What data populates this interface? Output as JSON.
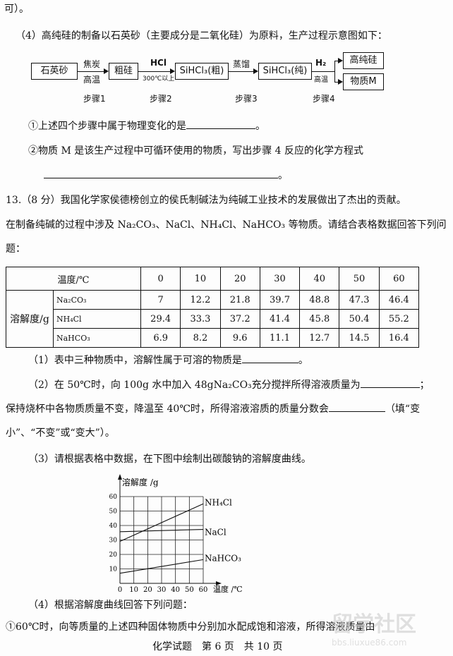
{
  "top_line": "可）。",
  "q4": {
    "intro": "（4）高纯硅的制备以石英砂（主要成分是二氧化硅）为原料，生产过程示意图如下：",
    "flow": {
      "boxes": [
        "石英砂",
        "粗硅",
        "SiHCl₃(粗)",
        "SiHCl₃(纯)",
        "高纯硅",
        "物质M"
      ],
      "step1_top": "焦炭",
      "step1_bottom": "高温",
      "step2_top": "HCl",
      "step2_bottom": "300℃以上",
      "step3_top": "蒸馏",
      "step4_top": "H₂",
      "step4_bottom": "高温",
      "steps": [
        "步骤1",
        "步骤2",
        "步骤3",
        "步骤4"
      ]
    },
    "sub1": "①上述四个步骤中属于物理变化的是",
    "sub1_end": "。",
    "sub2": "②物质 M 是该生产过程中可循环使用的物质，写出步骤 4 反应的化学方程式",
    "sub2_end": "。"
  },
  "q13": {
    "line1": "13.（8 分）我国化学家侯德榜创立的侯氏制碱法为纯碱工业技术的发展做出了杰出的贡献。",
    "line2": "在制备纯碱的过程中涉及 Na₂CO₃、NaCl、NH₄Cl、NaHCO₃ 等物质。请结合表格数据回答下列问",
    "line3": "题：",
    "table": {
      "header_label": "温度/℃",
      "temps": [
        "0",
        "10",
        "20",
        "30",
        "40",
        "50",
        "60"
      ],
      "row_label": "溶解度/g",
      "rows": [
        {
          "name": "Na₂CO₃",
          "values": [
            "7",
            "12.2",
            "21.8",
            "39.7",
            "48.8",
            "47.3",
            "46.4"
          ]
        },
        {
          "name": "NH₄Cl",
          "values": [
            "29.4",
            "33.3",
            "37.2",
            "41.4",
            "45.8",
            "50.4",
            "55.2"
          ]
        },
        {
          "name": "NaHCO₃",
          "values": [
            "6.9",
            "8.2",
            "9.6",
            "11.1",
            "12.7",
            "14.5",
            "16.4"
          ]
        }
      ]
    },
    "p1": "（1）表中三种物质中，溶解性属于可溶的物质是",
    "p1_end": "。",
    "p2a": "（2）在 50℃时，向 100g 水中加入 48gNa₂CO₃充分搅拌所得溶液质量为",
    "p2a_end": "；",
    "p2b": "保持烧杯中各物质质量不变，降温至 40℃时，所得溶液溶质的质量分数会",
    "p2b_end": "（填“变",
    "p2c": "小”、“不变”或“变大”）。",
    "p3": "（3）请根据表格中数据，在下图中绘制出碳酸钠的溶解度曲线。",
    "p4": "（4）根据溶解度曲线回答下列问题：",
    "p4_1": "①60℃时，向等质量的上述四种固体物质中分别加水配成饱和溶液，所得溶液质量由"
  },
  "chart_data": {
    "type": "line",
    "ylabel": "溶解度 /g",
    "xlabel": "温度 /℃",
    "xlim": [
      0,
      60
    ],
    "ylim": [
      0,
      60
    ],
    "xticks": [
      "0",
      "10",
      "20",
      "30",
      "40",
      "50",
      "60"
    ],
    "yticks": [
      "10",
      "20",
      "30",
      "40",
      "50",
      "60"
    ],
    "grid": true,
    "series": [
      {
        "name": "NH₄Cl",
        "x": [
          0,
          60
        ],
        "y": [
          29,
          55
        ]
      },
      {
        "name": "NaCl",
        "x": [
          0,
          60
        ],
        "y": [
          35.7,
          37.3
        ]
      },
      {
        "name": "NaHCO₃",
        "x": [
          0,
          60
        ],
        "y": [
          7,
          16.4
        ]
      }
    ]
  },
  "footer": "化学试题　第 6 页　共 10 页",
  "watermark": "留学社区 bbs.liuxue86.com"
}
